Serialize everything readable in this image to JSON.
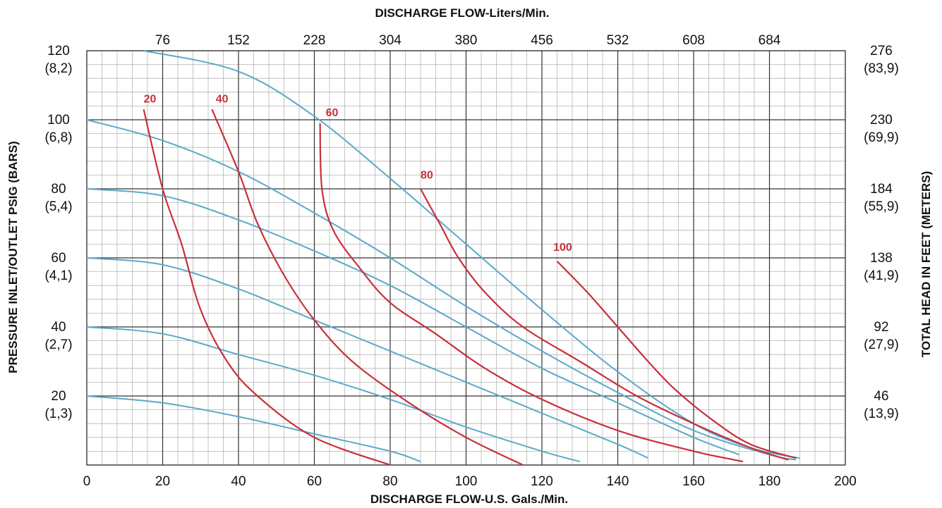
{
  "chart_data": {
    "type": "line",
    "title": "",
    "top_axis_title": "DISCHARGE FLOW-Liters/Min.",
    "bottom_axis_title": "DISCHARGE FLOW-U.S. Gals./Min.",
    "left_axis_title": "PRESSURE INLET/OUTLET PSIG (BARS)",
    "right_axis_title": "TOTAL HEAD IN FEET (METERS)",
    "xlim": [
      0,
      200
    ],
    "ylim": [
      0,
      120
    ],
    "grid": true,
    "x_ticks": [
      "0",
      "20",
      "40",
      "60",
      "80",
      "100",
      "120",
      "140",
      "160",
      "180",
      "200"
    ],
    "top_ticks": [
      {
        "x": 20,
        "label": "76"
      },
      {
        "x": 40,
        "label": "152"
      },
      {
        "x": 60,
        "label": "228"
      },
      {
        "x": 80,
        "label": "304"
      },
      {
        "x": 100,
        "label": "380"
      },
      {
        "x": 120,
        "label": "456"
      },
      {
        "x": 140,
        "label": "532"
      },
      {
        "x": 160,
        "label": "608"
      },
      {
        "x": 180,
        "label": "684"
      }
    ],
    "left_ticks": [
      {
        "y": 120,
        "psi": "120",
        "bar": "(8,2)"
      },
      {
        "y": 100,
        "psi": "100",
        "bar": "(6,8)"
      },
      {
        "y": 80,
        "psi": "80",
        "bar": "(5,4)"
      },
      {
        "y": 60,
        "psi": "60",
        "bar": "(4,1)"
      },
      {
        "y": 40,
        "psi": "40",
        "bar": "(2,7)"
      },
      {
        "y": 20,
        "psi": "20",
        "bar": "(1,3)"
      }
    ],
    "right_ticks": [
      {
        "y": 120,
        "ft": "276",
        "m": "(83,9)"
      },
      {
        "y": 100,
        "ft": "230",
        "m": "(69,9)"
      },
      {
        "y": 80,
        "ft": "184",
        "m": "(55,9)"
      },
      {
        "y": 60,
        "ft": "138",
        "m": "(41,9)"
      },
      {
        "y": 40,
        "ft": "92",
        "m": "(27,9)"
      },
      {
        "y": 20,
        "ft": "46",
        "m": "(13,9)"
      }
    ],
    "pressure_curves": [
      {
        "color": "#5aa9c9",
        "points": [
          [
            15,
            120
          ],
          [
            40,
            114
          ],
          [
            60,
            101
          ],
          [
            80,
            83
          ],
          [
            100,
            64
          ],
          [
            120,
            45
          ],
          [
            140,
            27
          ],
          [
            160,
            12
          ],
          [
            175,
            5
          ],
          [
            188,
            2
          ]
        ]
      },
      {
        "color": "#5aa9c9",
        "points": [
          [
            0,
            100
          ],
          [
            20,
            94
          ],
          [
            40,
            85
          ],
          [
            60,
            73
          ],
          [
            80,
            60
          ],
          [
            100,
            46
          ],
          [
            120,
            33
          ],
          [
            140,
            21
          ],
          [
            160,
            10
          ],
          [
            180,
            3
          ],
          [
            187,
            1.5
          ]
        ]
      },
      {
        "color": "#5aa9c9",
        "points": [
          [
            0,
            80
          ],
          [
            20,
            78
          ],
          [
            40,
            71
          ],
          [
            60,
            62
          ],
          [
            80,
            52
          ],
          [
            100,
            40
          ],
          [
            120,
            28
          ],
          [
            140,
            18
          ],
          [
            160,
            8
          ],
          [
            172,
            3
          ]
        ]
      },
      {
        "color": "#5aa9c9",
        "points": [
          [
            0,
            60
          ],
          [
            20,
            58
          ],
          [
            40,
            51
          ],
          [
            60,
            42
          ],
          [
            80,
            33
          ],
          [
            100,
            24
          ],
          [
            120,
            15
          ],
          [
            140,
            6
          ],
          [
            148,
            2
          ]
        ]
      },
      {
        "color": "#5aa9c9",
        "points": [
          [
            0,
            40
          ],
          [
            20,
            38
          ],
          [
            40,
            32
          ],
          [
            60,
            26
          ],
          [
            80,
            19
          ],
          [
            100,
            11
          ],
          [
            120,
            4
          ],
          [
            130,
            1
          ]
        ]
      },
      {
        "color": "#5aa9c9",
        "points": [
          [
            0,
            20
          ],
          [
            20,
            18
          ],
          [
            40,
            14
          ],
          [
            60,
            9
          ],
          [
            80,
            4
          ],
          [
            88,
            1
          ]
        ]
      }
    ],
    "air_curves": [
      {
        "label": "20",
        "label_x": 15,
        "label_y": 105,
        "color": "#c8303a",
        "points": [
          [
            15,
            103
          ],
          [
            20,
            80
          ],
          [
            25,
            64
          ],
          [
            30,
            45
          ],
          [
            37,
            30
          ],
          [
            45,
            20
          ],
          [
            60,
            8
          ],
          [
            80,
            0
          ]
        ]
      },
      {
        "label": "40",
        "label_x": 34,
        "label_y": 105,
        "color": "#c8303a",
        "points": [
          [
            33,
            103
          ],
          [
            40,
            85
          ],
          [
            45,
            70
          ],
          [
            52,
            55
          ],
          [
            60,
            42
          ],
          [
            70,
            30
          ],
          [
            85,
            18
          ],
          [
            100,
            8
          ],
          [
            115,
            0
          ]
        ]
      },
      {
        "label": "60",
        "label_x": 63,
        "label_y": 101,
        "color": "#c8303a",
        "points": [
          [
            61.5,
            99
          ],
          [
            62,
            80
          ],
          [
            65,
            68
          ],
          [
            72,
            57
          ],
          [
            80,
            47
          ],
          [
            92,
            38
          ],
          [
            105,
            28
          ],
          [
            120,
            19
          ],
          [
            140,
            10
          ],
          [
            160,
            4
          ],
          [
            173,
            1
          ]
        ]
      },
      {
        "label": "80",
        "label_x": 88,
        "label_y": 83,
        "color": "#c8303a",
        "points": [
          [
            88,
            80
          ],
          [
            93,
            70
          ],
          [
            98,
            60
          ],
          [
            105,
            50
          ],
          [
            115,
            40
          ],
          [
            130,
            30
          ],
          [
            145,
            20
          ],
          [
            160,
            12
          ],
          [
            175,
            5
          ],
          [
            185,
            1.5
          ]
        ]
      },
      {
        "label": "100",
        "label_x": 123,
        "label_y": 62,
        "color": "#c8303a",
        "points": [
          [
            124,
            59
          ],
          [
            132,
            50
          ],
          [
            140,
            40
          ],
          [
            148,
            30
          ],
          [
            155,
            22
          ],
          [
            165,
            13
          ],
          [
            175,
            6
          ],
          [
            187,
            2
          ]
        ]
      }
    ]
  }
}
